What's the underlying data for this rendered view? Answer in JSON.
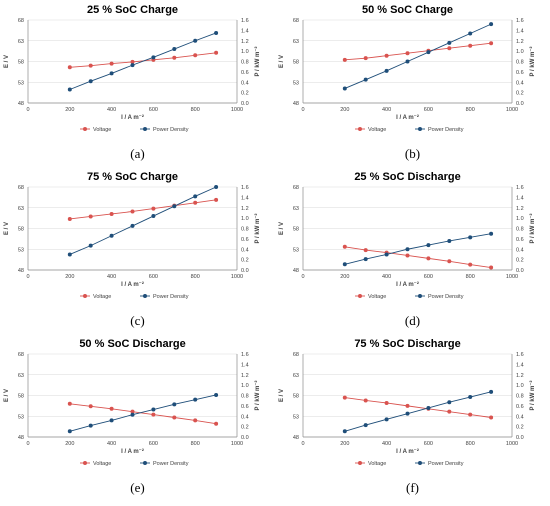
{
  "colors": {
    "voltage": "#d9534f",
    "power": "#1f4e79",
    "grid": "#d9d9d9",
    "axis": "#8c8c8c",
    "text": "#404040"
  },
  "chart_data": [
    {
      "type": "line",
      "panel_label": "(a)",
      "title": "25 % SoC Charge",
      "xlabel": "I / A m⁻²",
      "ylabel": "E / V",
      "y2label": "P / kW m⁻²",
      "xlim": [
        0,
        1000
      ],
      "xticks": [
        0,
        200,
        400,
        600,
        800,
        1000
      ],
      "ylim": [
        48,
        68
      ],
      "yticks": [
        48,
        53,
        58,
        63,
        68
      ],
      "y2lim": [
        0,
        1.6
      ],
      "y2ticks": [
        "0.0",
        "0.2",
        "0.4",
        "0.6",
        "0.8",
        "1.0",
        "1.2",
        "1.4",
        "1.6"
      ],
      "x": [
        200,
        300,
        400,
        500,
        600,
        700,
        800,
        900
      ],
      "series": [
        {
          "name": "Voltage",
          "axis": "left",
          "values": [
            56.6,
            57.0,
            57.5,
            57.9,
            58.4,
            58.9,
            59.5,
            60.1
          ]
        },
        {
          "name": "Power Density",
          "axis": "right",
          "values": [
            0.26,
            0.42,
            0.57,
            0.73,
            0.88,
            1.04,
            1.2,
            1.35
          ]
        }
      ],
      "legend": "bottom"
    },
    {
      "type": "line",
      "panel_label": "(b)",
      "title": "50 % SoC Charge",
      "xlabel": "I / A m⁻²",
      "ylabel": "E / V",
      "y2label": "P / kW m⁻²",
      "xlim": [
        0,
        1000
      ],
      "xticks": [
        0,
        200,
        400,
        600,
        800,
        1000
      ],
      "ylim": [
        48,
        68
      ],
      "yticks": [
        48,
        53,
        58,
        63,
        68
      ],
      "y2lim": [
        0,
        1.6
      ],
      "y2ticks": [
        "0.0",
        "0.2",
        "0.4",
        "0.6",
        "0.8",
        "1.0",
        "1.2",
        "1.4",
        "1.6"
      ],
      "x": [
        200,
        300,
        400,
        500,
        600,
        700,
        800,
        900
      ],
      "series": [
        {
          "name": "Voltage",
          "axis": "left",
          "values": [
            58.4,
            58.8,
            59.4,
            60.0,
            60.6,
            61.2,
            61.8,
            62.4
          ]
        },
        {
          "name": "Power Density",
          "axis": "right",
          "values": [
            0.28,
            0.45,
            0.62,
            0.8,
            0.98,
            1.16,
            1.34,
            1.52
          ]
        }
      ],
      "legend": "bottom"
    },
    {
      "type": "line",
      "panel_label": "(c)",
      "title": "75 % SoC Charge",
      "xlabel": "I / A m⁻²",
      "ylabel": "E / V",
      "y2label": "P / kW m⁻²",
      "xlim": [
        0,
        1000
      ],
      "xticks": [
        0,
        200,
        400,
        600,
        800,
        1000
      ],
      "ylim": [
        48,
        68
      ],
      "yticks": [
        48,
        53,
        58,
        63,
        68
      ],
      "y2lim": [
        0,
        1.6
      ],
      "y2ticks": [
        "0.0",
        "0.2",
        "0.4",
        "0.6",
        "0.8",
        "1.0",
        "1.2",
        "1.4",
        "1.6"
      ],
      "x": [
        200,
        300,
        400,
        500,
        600,
        700,
        800,
        900
      ],
      "series": [
        {
          "name": "Voltage",
          "axis": "left",
          "values": [
            60.3,
            60.9,
            61.5,
            62.1,
            62.8,
            63.5,
            64.2,
            64.9
          ]
        },
        {
          "name": "Power Density",
          "axis": "right",
          "values": [
            0.3,
            0.47,
            0.66,
            0.85,
            1.04,
            1.23,
            1.42,
            1.6
          ]
        }
      ],
      "legend": "bottom"
    },
    {
      "type": "line",
      "panel_label": "(d)",
      "title": "25 % SoC Discharge",
      "xlabel": "I / A m⁻²",
      "ylabel": "E / V",
      "y2label": "P / kW m⁻²",
      "xlim": [
        0,
        1000
      ],
      "xticks": [
        0,
        200,
        400,
        600,
        800,
        1000
      ],
      "ylim": [
        48,
        68
      ],
      "yticks": [
        48,
        53,
        58,
        63,
        68
      ],
      "y2lim": [
        0,
        1.6
      ],
      "y2ticks": [
        "0.0",
        "0.2",
        "0.4",
        "0.6",
        "0.8",
        "1.0",
        "1.2",
        "1.4",
        "1.6"
      ],
      "x": [
        200,
        300,
        400,
        500,
        600,
        700,
        800,
        900
      ],
      "series": [
        {
          "name": "Voltage",
          "axis": "left",
          "values": [
            53.6,
            52.8,
            52.2,
            51.5,
            50.8,
            50.1,
            49.3,
            48.6
          ]
        },
        {
          "name": "Power Density",
          "axis": "right",
          "values": [
            0.11,
            0.21,
            0.3,
            0.4,
            0.48,
            0.56,
            0.63,
            0.7
          ]
        }
      ],
      "legend": "bottom"
    },
    {
      "type": "line",
      "panel_label": "(e)",
      "title": "50 % SoC Discharge",
      "xlabel": "I / A m⁻²",
      "ylabel": "E / V",
      "y2label": "P / kW m⁻²",
      "xlim": [
        0,
        1000
      ],
      "xticks": [
        0,
        200,
        400,
        600,
        800,
        1000
      ],
      "ylim": [
        48,
        68
      ],
      "yticks": [
        48,
        53,
        58,
        63,
        68
      ],
      "y2lim": [
        0,
        1.6
      ],
      "y2ticks": [
        "0.0",
        "0.2",
        "0.4",
        "0.6",
        "0.8",
        "1.0",
        "1.2",
        "1.4",
        "1.6"
      ],
      "x": [
        200,
        300,
        400,
        500,
        600,
        700,
        800,
        900
      ],
      "series": [
        {
          "name": "Voltage",
          "axis": "left",
          "values": [
            56.0,
            55.4,
            54.8,
            54.1,
            53.4,
            52.7,
            52.0,
            51.2
          ]
        },
        {
          "name": "Power Density",
          "axis": "right",
          "values": [
            0.11,
            0.22,
            0.32,
            0.43,
            0.53,
            0.63,
            0.72,
            0.81
          ]
        }
      ],
      "legend": "bottom"
    },
    {
      "type": "line",
      "panel_label": "(f)",
      "title": "75 % SoC Discharge",
      "xlabel": "I / A m⁻²",
      "ylabel": "E / V",
      "y2label": "P / kW m⁻²",
      "xlim": [
        0,
        1000
      ],
      "xticks": [
        0,
        200,
        400,
        600,
        800,
        1000
      ],
      "ylim": [
        48,
        68
      ],
      "yticks": [
        48,
        53,
        58,
        63,
        68
      ],
      "y2lim": [
        0,
        1.6
      ],
      "y2ticks": [
        "0.0",
        "0.2",
        "0.4",
        "0.6",
        "0.8",
        "1.0",
        "1.2",
        "1.4",
        "1.6"
      ],
      "x": [
        200,
        300,
        400,
        500,
        600,
        700,
        800,
        900
      ],
      "series": [
        {
          "name": "Voltage",
          "axis": "left",
          "values": [
            57.5,
            56.8,
            56.2,
            55.5,
            54.8,
            54.1,
            53.4,
            52.7
          ]
        },
        {
          "name": "Power Density",
          "axis": "right",
          "values": [
            0.11,
            0.23,
            0.34,
            0.45,
            0.56,
            0.67,
            0.77,
            0.87
          ]
        }
      ],
      "legend": "bottom"
    }
  ]
}
